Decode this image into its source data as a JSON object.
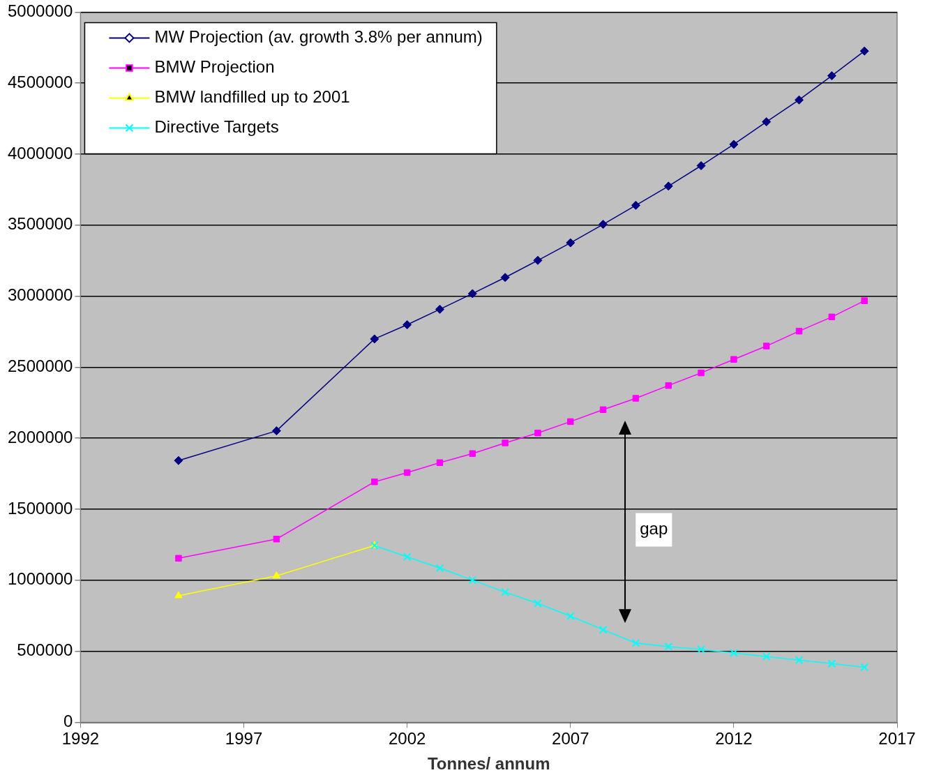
{
  "chart_data": {
    "type": "line",
    "xlabel": "Tonnes/ annum",
    "xlim": [
      1992,
      2017
    ],
    "xticks": [
      1992,
      1997,
      2002,
      2007,
      2012,
      2017
    ],
    "ylim": [
      0,
      5000000
    ],
    "yticks": [
      0,
      500000,
      1000000,
      1500000,
      2000000,
      2500000,
      3000000,
      3500000,
      4000000,
      4500000,
      5000000
    ],
    "grid": "y",
    "legend": "top left",
    "series": [
      {
        "name": "MW Projection (av. growth 3.8% per annum)",
        "color": "#000080",
        "marker": "diamond",
        "x": [
          1995,
          1998,
          2001,
          2002,
          2003,
          2004,
          2005,
          2006,
          2007,
          2008,
          2009,
          2010,
          2011,
          2012,
          2013,
          2014,
          2015,
          2016
        ],
        "values": [
          1843000,
          2052000,
          2699000,
          2799000,
          2908000,
          3018000,
          3132000,
          3252000,
          3376000,
          3506000,
          3640000,
          3775000,
          3919000,
          4069000,
          4228000,
          4382000,
          4552000,
          4726000
        ]
      },
      {
        "name": "BMW Projection",
        "color": "#ff00ff",
        "marker": "square",
        "x": [
          1995,
          1998,
          2001,
          2002,
          2003,
          2004,
          2005,
          2006,
          2007,
          2008,
          2009,
          2010,
          2011,
          2012,
          2013,
          2014,
          2015,
          2016
        ],
        "values": [
          1155000,
          1290000,
          1693000,
          1758000,
          1828000,
          1892000,
          1967000,
          2037000,
          2117000,
          2201000,
          2281000,
          2371000,
          2460000,
          2555000,
          2649000,
          2754000,
          2854000,
          2968000
        ]
      },
      {
        "name": "BMW landfilled up to 2001",
        "color": "#ffff00",
        "marker": "triangle",
        "x": [
          1995,
          1998,
          2001
        ],
        "values": [
          891000,
          1031000,
          1245000
        ]
      },
      {
        "name": "Directive Targets",
        "color": "#00ffff",
        "marker": "cross",
        "x": [
          2001,
          2002,
          2003,
          2004,
          2005,
          2006,
          2007,
          2008,
          2009,
          2010,
          2011,
          2012,
          2013,
          2014,
          2015,
          2016
        ],
        "values": [
          1245000,
          1165000,
          1086000,
          1001000,
          916000,
          837000,
          747000,
          652000,
          558000,
          533000,
          513000,
          488000,
          463000,
          438000,
          413000,
          388000
        ]
      }
    ],
    "annotations": [
      "gap"
    ]
  }
}
